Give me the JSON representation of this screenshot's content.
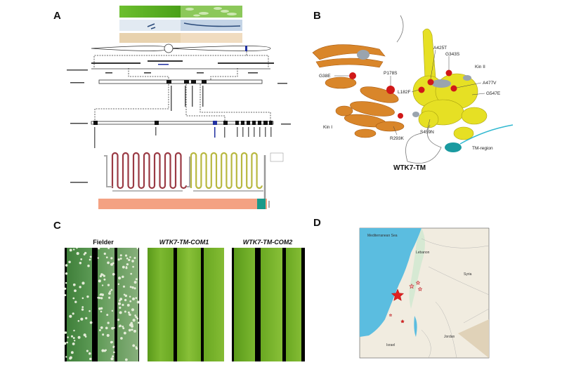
{
  "panels": {
    "A": {
      "label": "A"
    },
    "B": {
      "label": "B",
      "title": "WTK7-TM",
      "mutations": [
        "G38E",
        "P178S",
        "L182F",
        "A425T",
        "G343S",
        "A477V",
        "G547E",
        "R293K",
        "S459N"
      ],
      "domains": [
        "Kin I",
        "Kin II",
        "TM-region"
      ],
      "colors": {
        "kin1": "#d9862a",
        "kin2": "#e6e024",
        "tm": "#1a9aa0",
        "mutation": "#d01818"
      }
    },
    "C": {
      "label": "C",
      "samples": [
        {
          "title": "Fielder",
          "italic": false
        },
        {
          "title": "WTK7-TM-COM1",
          "italic": true
        },
        {
          "title": "WTK7-TM-COM2",
          "italic": true
        }
      ]
    },
    "D": {
      "label": "D",
      "map_labels": {
        "sea": "Mediterranean Sea",
        "lebanon": "Lebanon",
        "syria": "Syria",
        "jordan": "Jordan",
        "israel": "Israel"
      },
      "colors": {
        "sea": "#5bbde0",
        "land": "#f1ece0",
        "marker": "#e02020"
      }
    }
  }
}
